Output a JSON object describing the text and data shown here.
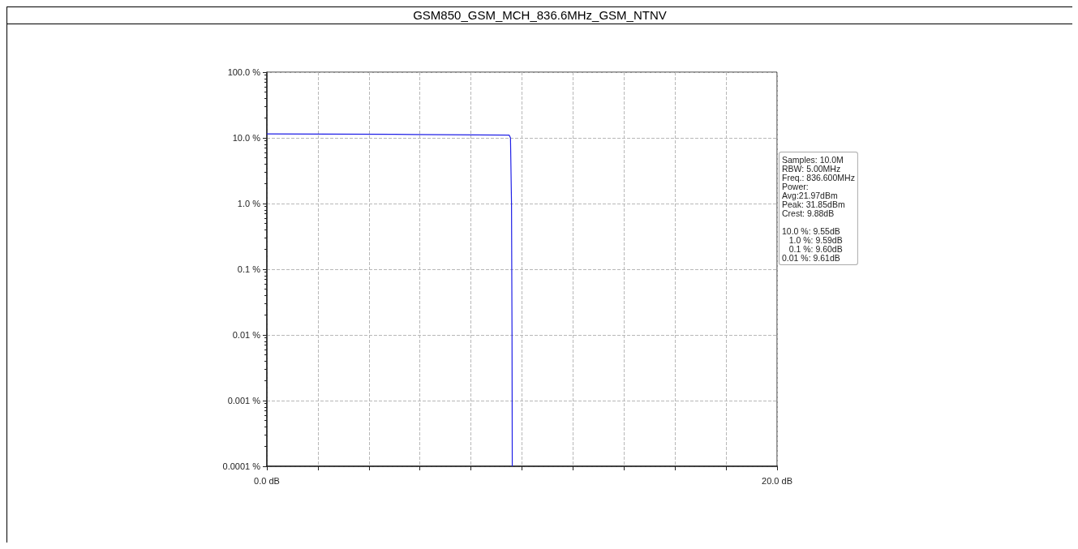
{
  "chart_data": {
    "type": "line",
    "title": "GSM850_GSM_MCH_836.6MHz_GSM_NTNV",
    "x": [
      0,
      5,
      9.5,
      9.55,
      9.59,
      9.6,
      9.61,
      9.62
    ],
    "series": [
      {
        "color": "#1f1fe6",
        "values": [
          11.5,
          11.3,
          11.0,
          10.0,
          1.0,
          0.1,
          0.01,
          0.0001
        ]
      }
    ],
    "xlim": [
      0,
      20
    ],
    "xticks": [
      {
        "value": 0,
        "label": "0.0 dB"
      },
      {
        "value": 2,
        "label": null
      },
      {
        "value": 4,
        "label": null
      },
      {
        "value": 6,
        "label": null
      },
      {
        "value": 8,
        "label": null
      },
      {
        "value": 10,
        "label": null
      },
      {
        "value": 12,
        "label": null
      },
      {
        "value": 14,
        "label": null
      },
      {
        "value": 16,
        "label": null
      },
      {
        "value": 18,
        "label": null
      },
      {
        "value": 20,
        "label": "20.0 dB"
      }
    ],
    "ylim": [
      0.0001,
      100
    ],
    "yticks": [
      {
        "value": 0.0001,
        "label": "0.0001 %"
      },
      {
        "value": 0.001,
        "label": "0.001 %"
      },
      {
        "value": 0.01,
        "label": "0.01 %"
      },
      {
        "value": 0.1,
        "label": "0.1 %"
      },
      {
        "value": 1,
        "label": "1.0 %"
      },
      {
        "value": 10,
        "label": "10.0 %"
      },
      {
        "value": 100,
        "label": "100.0 %"
      }
    ],
    "log": "y",
    "grid": true,
    "marker": "none",
    "line_style": "solid",
    "annotations": [
      "Samples: 10.0M\nRBW: 5.00MHz\nFreq.: 836.600MHz\nPower:\nAvg:21.97dBm\nPeak: 31.85dBm\nCrest: 9.88dB",
      "10.0 %: 9.55dB\n   1.0 %: 9.59dB\n   0.1 %: 9.60dB\n0.01 %: 9.61dB"
    ]
  }
}
